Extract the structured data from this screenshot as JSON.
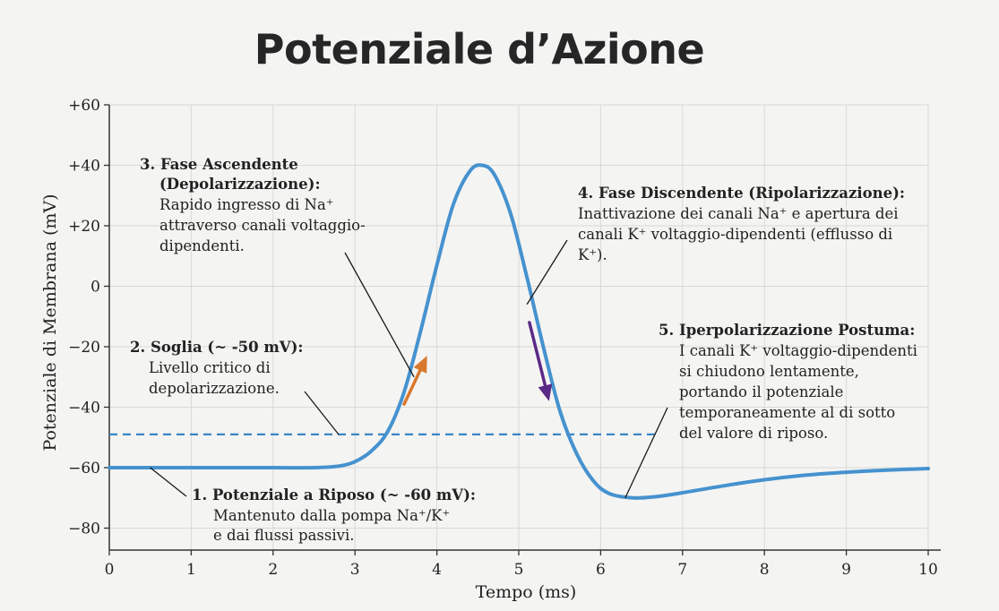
{
  "chart_data": {
    "type": "line",
    "title": "Potenziale d’Azione",
    "xlabel": "Tempo (ms)",
    "ylabel": "Potenziale di Membrana (mV)",
    "xlim": [
      0,
      10
    ],
    "ylim": [
      -85,
      60
    ],
    "x_ticks": [
      "0",
      "1",
      "2",
      "3",
      "4",
      "5",
      "6",
      "7",
      "8",
      "9",
      "10"
    ],
    "y_ticks": [
      {
        "value": 60,
        "label": "+60"
      },
      {
        "value": 40,
        "label": "+40"
      },
      {
        "value": 20,
        "label": "+20"
      },
      {
        "value": 0,
        "label": "0"
      },
      {
        "value": -20,
        "label": "−20"
      },
      {
        "value": -40,
        "label": "−40"
      },
      {
        "value": -60,
        "label": "−60"
      },
      {
        "value": -80,
        "label": "−80"
      }
    ],
    "grid": true,
    "line_color": "#4592cf",
    "threshold": {
      "value": -49,
      "x_range": [
        0,
        6.7
      ],
      "color": "#3a86c4"
    },
    "series": [
      {
        "x": [
          0,
          0.5,
          1,
          1.5,
          2,
          2.5,
          2.8,
          3,
          3.2,
          3.4,
          3.6,
          3.8,
          4,
          4.2,
          4.4,
          4.55,
          4.7,
          4.9,
          5.1,
          5.3,
          5.5,
          5.7,
          5.9,
          6.1,
          6.4,
          6.7,
          7,
          7.5,
          8,
          8.5,
          9,
          9.5,
          10
        ],
        "y": [
          -60,
          -60,
          -60,
          -60,
          -60,
          -60,
          -59.5,
          -58,
          -54.5,
          -48,
          -35,
          -15,
          7,
          27,
          38,
          40,
          37,
          24,
          3,
          -20,
          -41,
          -55,
          -64,
          -68.5,
          -70,
          -69.5,
          -68.3,
          -66,
          -64,
          -62.5,
          -61.5,
          -60.8,
          -60.3
        ]
      }
    ],
    "arrows": [
      {
        "name": "depolarization-arrow",
        "from": [
          3.6,
          -39
        ],
        "to": [
          3.88,
          -23
        ],
        "color": "#d8782c"
      },
      {
        "name": "repolarization-arrow",
        "from": [
          5.13,
          -12
        ],
        "to": [
          5.37,
          -38
        ],
        "color": "#5b2a86"
      }
    ],
    "annotations": [
      {
        "id": "resting",
        "heading": "1. Potenziale a Riposo (~ -60 mV):",
        "lines": [
          "Mantenuto dalla pompa Na⁺/K⁺",
          "e dai flussi passivi."
        ],
        "target": [
          0.5,
          -60
        ]
      },
      {
        "id": "threshold",
        "heading": "2. Soglia (~ -50 mV):",
        "lines": [
          "Livello critico di",
          "depolarizzazione."
        ],
        "target": [
          2.8,
          -49
        ]
      },
      {
        "id": "rising",
        "heading": "3. Fase Ascendente",
        "lines": [
          "(Depolarizzazione):",
          "Rapido ingresso di Na⁺",
          "attraverso canali voltaggio-",
          "dipendenti."
        ],
        "target": [
          3.72,
          -30
        ]
      },
      {
        "id": "falling",
        "heading": "4. Fase Discendente (Ripolarizzazione):",
        "lines": [
          "Inattivazione dei canali Na⁺ e apertura dei",
          "canali K⁺ voltaggio-dipendenti (efflusso di",
          "K⁺)."
        ],
        "target": [
          5.1,
          -6
        ]
      },
      {
        "id": "hyperpol",
        "heading": "5. Iperpolarizzazione Postuma:",
        "lines": [
          "I canali K⁺ voltaggio-dipendenti",
          "si chiudono lentamente,",
          "portando il potenziale",
          "temporaneamente al di sotto",
          "del valore di riposo."
        ],
        "target": [
          6.3,
          -70
        ]
      }
    ]
  }
}
